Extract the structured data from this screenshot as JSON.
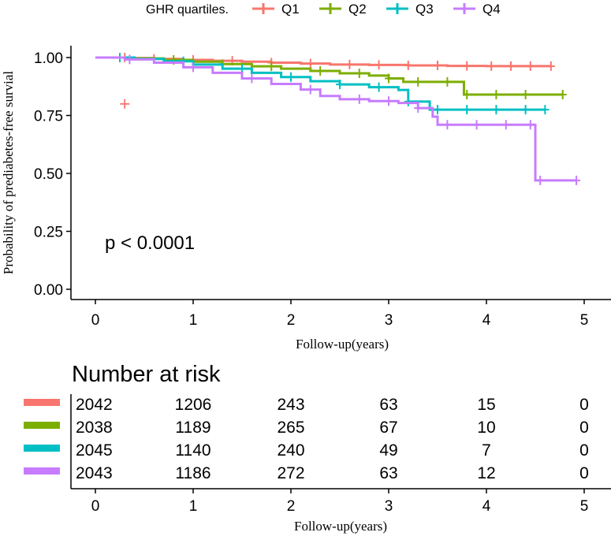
{
  "chart_data": {
    "type": "line",
    "subtype": "kaplan-meier",
    "legend": {
      "title": "GHR quartiles.",
      "position": "top",
      "entries": [
        "Q1",
        "Q2",
        "Q3",
        "Q4"
      ]
    },
    "colors": {
      "Q1": "#F8766D",
      "Q2": "#7CAE00",
      "Q3": "#00BFC4",
      "Q4": "#C77CFF"
    },
    "xlabel": "Follow-up(years)",
    "ylabel": "Probability of prediabetes-free survial",
    "xlim": [
      0,
      5
    ],
    "ylim": [
      0,
      1
    ],
    "x_ticks": [
      "0",
      "1",
      "2",
      "3",
      "4",
      "5"
    ],
    "y_ticks": [
      "0.00",
      "0.25",
      "0.50",
      "0.75",
      "1.00"
    ],
    "annotation": "p < 0.0001",
    "series": [
      {
        "name": "Q1",
        "steps": [
          [
            0,
            1.0
          ],
          [
            0.35,
            0.998
          ],
          [
            0.6,
            0.994
          ],
          [
            0.9,
            0.99
          ],
          [
            1.2,
            0.986
          ],
          [
            1.5,
            0.982
          ],
          [
            1.8,
            0.978
          ],
          [
            2.1,
            0.974
          ],
          [
            2.4,
            0.97
          ],
          [
            2.8,
            0.968
          ],
          [
            3.2,
            0.966
          ],
          [
            3.6,
            0.964
          ],
          [
            4.0,
            0.963
          ],
          [
            4.66,
            0.963
          ]
        ],
        "censor_x": [
          0.3,
          0.6,
          1.0,
          1.4,
          1.8,
          2.2,
          2.6,
          2.9,
          3.2,
          3.5,
          3.8,
          4.05,
          4.25,
          4.45,
          4.66
        ],
        "outlier": [
          0.3,
          0.8
        ]
      },
      {
        "name": "Q2",
        "steps": [
          [
            0,
            1.0
          ],
          [
            0.4,
            0.996
          ],
          [
            0.7,
            0.99
          ],
          [
            1.0,
            0.982
          ],
          [
            1.3,
            0.972
          ],
          [
            1.6,
            0.962
          ],
          [
            1.9,
            0.952
          ],
          [
            2.2,
            0.942
          ],
          [
            2.5,
            0.932
          ],
          [
            2.8,
            0.922
          ],
          [
            3.0,
            0.91
          ],
          [
            3.15,
            0.895
          ],
          [
            3.77,
            0.84
          ],
          [
            4.78,
            0.84
          ]
        ],
        "censor_x": [
          0.25,
          0.8,
          1.3,
          1.8,
          2.3,
          2.7,
          3.0,
          3.3,
          3.6,
          3.8,
          4.1,
          4.4,
          4.78
        ]
      },
      {
        "name": "Q3",
        "steps": [
          [
            0,
            1.0
          ],
          [
            0.4,
            0.994
          ],
          [
            0.7,
            0.984
          ],
          [
            1.0,
            0.97
          ],
          [
            1.3,
            0.952
          ],
          [
            1.6,
            0.934
          ],
          [
            1.9,
            0.916
          ],
          [
            2.2,
            0.898
          ],
          [
            2.5,
            0.884
          ],
          [
            2.8,
            0.872
          ],
          [
            3.1,
            0.86
          ],
          [
            3.2,
            0.81
          ],
          [
            3.42,
            0.775
          ],
          [
            4.6,
            0.775
          ]
        ],
        "censor_x": [
          0.25,
          0.9,
          1.5,
          2.0,
          2.5,
          2.9,
          3.2,
          3.5,
          3.8,
          4.1,
          4.4,
          4.6
        ]
      },
      {
        "name": "Q4",
        "steps": [
          [
            0,
            1.0
          ],
          [
            0.3,
            0.992
          ],
          [
            0.6,
            0.978
          ],
          [
            0.9,
            0.958
          ],
          [
            1.2,
            0.934
          ],
          [
            1.5,
            0.91
          ],
          [
            1.8,
            0.886
          ],
          [
            2.1,
            0.862
          ],
          [
            2.3,
            0.834
          ],
          [
            2.5,
            0.82
          ],
          [
            2.8,
            0.812
          ],
          [
            3.1,
            0.804
          ],
          [
            3.3,
            0.782
          ],
          [
            3.45,
            0.745
          ],
          [
            3.5,
            0.71
          ],
          [
            4.5,
            0.71
          ],
          [
            4.5,
            0.47
          ],
          [
            4.92,
            0.47
          ]
        ],
        "censor_x": [
          0.35,
          1.0,
          1.6,
          2.2,
          2.7,
          3.0,
          3.3,
          3.6,
          3.9,
          4.2,
          4.45,
          4.55,
          4.92
        ]
      }
    ]
  },
  "risk_table": {
    "title": "Number at risk",
    "xlabel": "Follow-up(years)",
    "x_ticks": [
      "0",
      "1",
      "2",
      "3",
      "4",
      "5"
    ],
    "rows": [
      {
        "group": "Q1",
        "values": [
          "2042",
          "1206",
          "243",
          "63",
          "15",
          "0"
        ]
      },
      {
        "group": "Q2",
        "values": [
          "2038",
          "1189",
          "265",
          "67",
          "10",
          "0"
        ]
      },
      {
        "group": "Q3",
        "values": [
          "2045",
          "1140",
          "240",
          "49",
          "7",
          "0"
        ]
      },
      {
        "group": "Q4",
        "values": [
          "2043",
          "1186",
          "272",
          "63",
          "12",
          "0"
        ]
      }
    ]
  }
}
